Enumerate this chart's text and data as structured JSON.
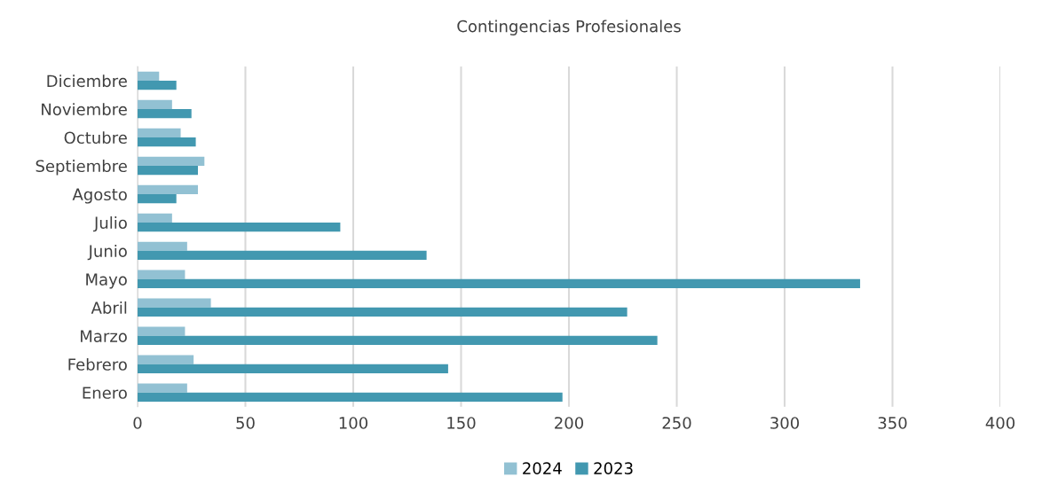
{
  "chart_data": {
    "type": "bar",
    "orientation": "horizontal",
    "title": "Contingencias Profesionales",
    "categories": [
      "Diciembre",
      "Noviembre",
      "Octubre",
      "Septiembre",
      "Agosto",
      "Julio",
      "Junio",
      "Mayo",
      "Abril",
      "Marzo",
      "Febrero",
      "Enero"
    ],
    "series": [
      {
        "name": "2024",
        "color": "#92c1d3",
        "values": [
          10,
          16,
          20,
          31,
          28,
          16,
          23,
          22,
          34,
          22,
          26,
          23
        ]
      },
      {
        "name": "2023",
        "color": "#4298b0",
        "values": [
          18,
          25,
          27,
          28,
          18,
          94,
          134,
          335,
          227,
          241,
          144,
          197
        ]
      }
    ],
    "xlim": [
      0,
      400
    ],
    "xticks": [
      0,
      50,
      100,
      150,
      200,
      250,
      300,
      350,
      400
    ],
    "grid": "x",
    "legend": "bottom"
  }
}
